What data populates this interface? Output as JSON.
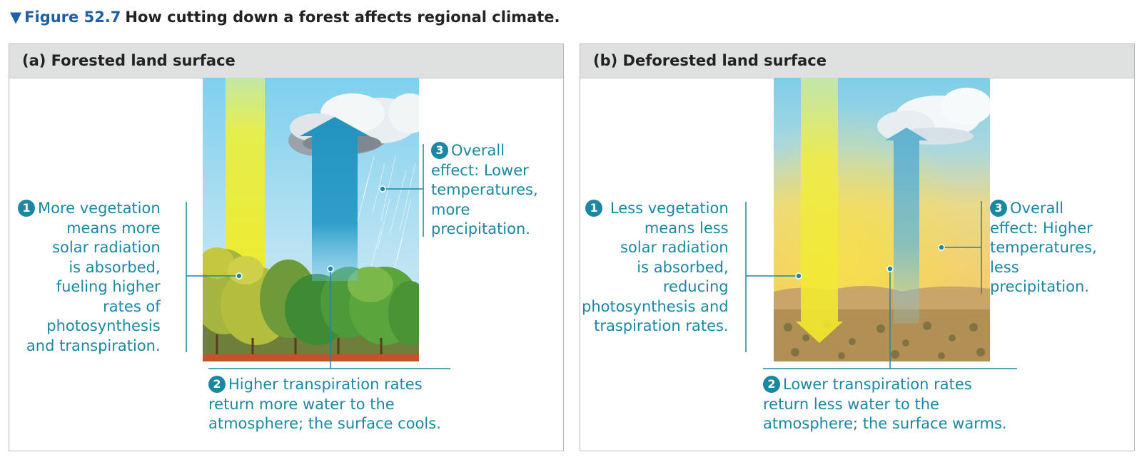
{
  "figure": {
    "marker": "▼",
    "number": "Figure 52.7",
    "title": "How cutting down a forest affects regional climate."
  },
  "panels": [
    {
      "heading": "(a) Forested land surface",
      "callout1": {
        "badge": "1",
        "lines": [
          "More vegetation",
          "means more",
          "solar radiation",
          "is absorbed,",
          "fueling higher",
          "rates of",
          "photosynthesis",
          "and transpiration."
        ]
      },
      "callout2": {
        "badge": "2",
        "lines": [
          "Higher transpiration rates",
          "return more water to the",
          "atmosphere; the surface cools."
        ]
      },
      "callout3": {
        "badge": "3",
        "lines": [
          "Overall",
          "effect: Lower",
          "temperatures,",
          "more",
          "precipitation."
        ]
      }
    },
    {
      "heading": "(b) Deforested land surface",
      "callout1": {
        "badge": "1",
        "lines": [
          "Less vegetation",
          "means less",
          "solar radiation",
          "is absorbed,",
          "reducing",
          "photosynthesis and",
          "traspiration rates."
        ]
      },
      "callout2": {
        "badge": "2",
        "lines": [
          "Lower transpiration rates",
          "return less water to the",
          "atmosphere; the surface warms."
        ]
      },
      "callout3": {
        "badge": "3",
        "lines": [
          "Overall",
          "effect: Higher",
          "temperatures,",
          "less",
          "precipitation."
        ]
      }
    }
  ],
  "colors": {
    "accent": "#1a87a3",
    "title_blue": "#1f5faa",
    "header_bg": "#dfe1e0",
    "sun_arrow": "#f2ea2a",
    "water_arrow": "#2a9cc4"
  }
}
